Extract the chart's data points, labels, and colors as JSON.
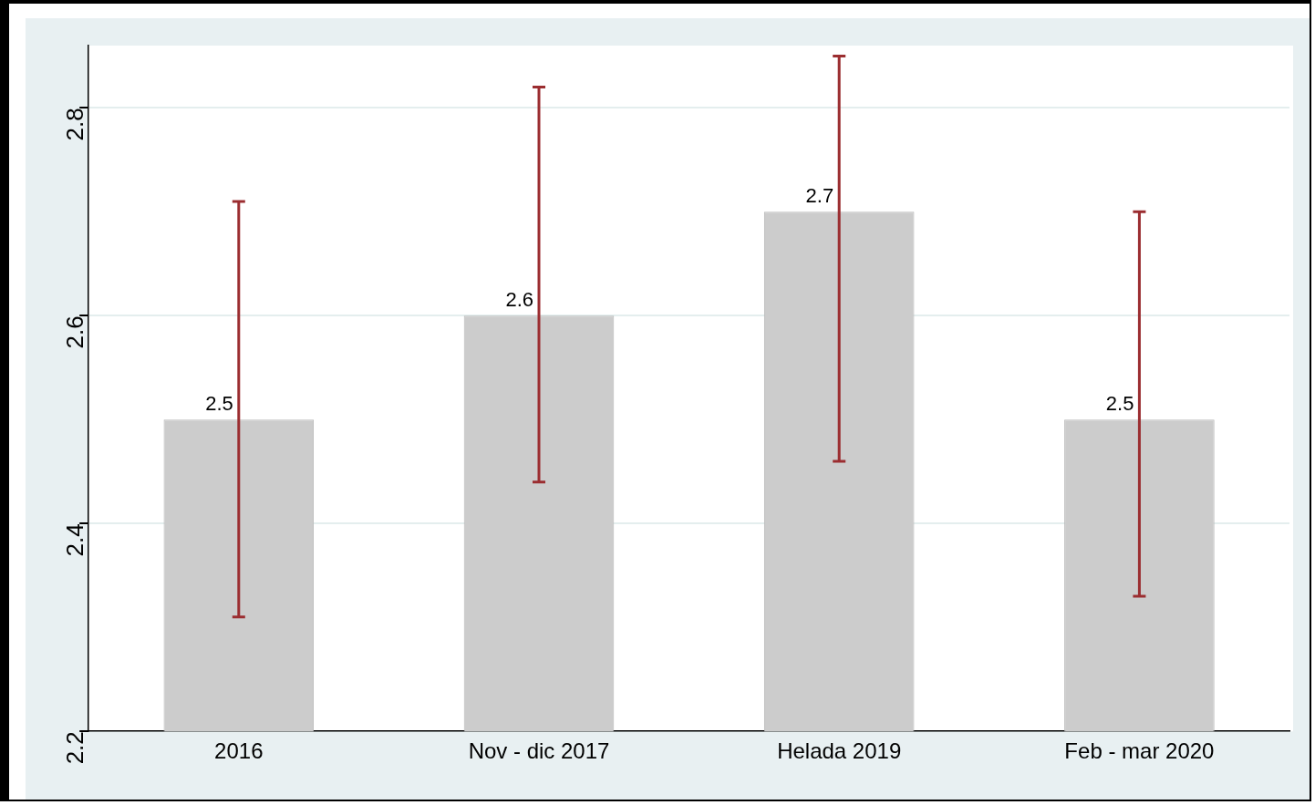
{
  "chart_data": {
    "type": "bar",
    "categories": [
      "2016",
      "Nov - dic 2017",
      "Helada 2019",
      "Feb - mar 2020"
    ],
    "values": [
      2.5,
      2.6,
      2.7,
      2.5
    ],
    "color": "#cccccc",
    "errors": [
      [
        2.31,
        2.71
      ],
      [
        2.44,
        2.82
      ],
      [
        2.46,
        2.85
      ],
      [
        2.33,
        2.7
      ]
    ],
    "ylim": [
      2.2,
      2.86
    ],
    "yticks": [
      2.2,
      2.4,
      2.6,
      2.8
    ],
    "grid": "y",
    "legend": false,
    "data_labels": true
  }
}
